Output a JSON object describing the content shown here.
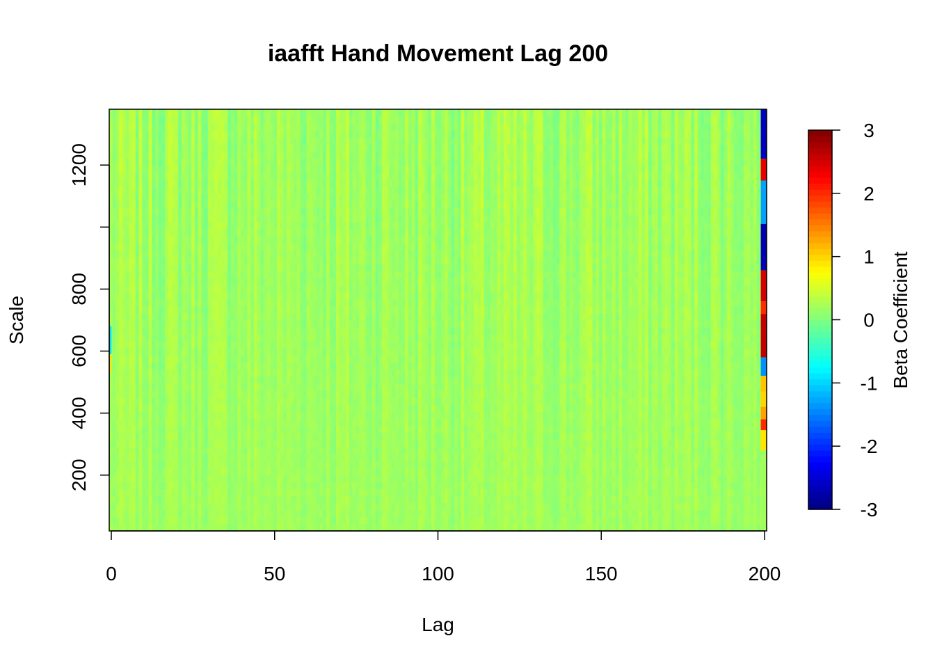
{
  "chart_data": {
    "type": "heatmap",
    "title": "iaafft Hand Movement Lag 200",
    "xlabel": "Lag",
    "ylabel": "Scale",
    "colorbar_label": "Beta Coefficient",
    "xlim": [
      0,
      200
    ],
    "ylim": [
      20,
      1380
    ],
    "x_ticks": [
      0,
      50,
      100,
      150,
      200
    ],
    "x_tick_labels": [
      "0",
      "50",
      "100",
      "150",
      "200"
    ],
    "y_ticks": [
      200,
      400,
      600,
      800,
      1000,
      1200,
      1400
    ],
    "y_tick_labels": [
      "200",
      "400",
      "600",
      "800",
      "",
      "1200",
      ""
    ],
    "colorbar_range": [
      -3,
      3
    ],
    "colorbar_ticks": [
      -3,
      -2,
      -1,
      0,
      1,
      2,
      3
    ],
    "colorbar_tick_labels": [
      "-3",
      "-2",
      "-1",
      "0",
      "1",
      "2",
      "3"
    ],
    "colormap": [
      "#00007F",
      "#0000FF",
      "#007FFF",
      "#00FFFF",
      "#7FFF7F",
      "#FFFF00",
      "#FF7F00",
      "#FF0000",
      "#7F0000"
    ],
    "background_value": 0.2,
    "last_lag_column": {
      "lag": 200,
      "segments": [
        {
          "scale_from": 1220,
          "scale_to": 1380,
          "value": -2.6
        },
        {
          "scale_from": 1150,
          "scale_to": 1220,
          "value": 2.4
        },
        {
          "scale_from": 1010,
          "scale_to": 1150,
          "value": -1.3
        },
        {
          "scale_from": 860,
          "scale_to": 1010,
          "value": -2.7
        },
        {
          "scale_from": 760,
          "scale_to": 860,
          "value": 2.5
        },
        {
          "scale_from": 720,
          "scale_to": 760,
          "value": 2.0
        },
        {
          "scale_from": 580,
          "scale_to": 720,
          "value": 2.6
        },
        {
          "scale_from": 520,
          "scale_to": 580,
          "value": -1.4
        },
        {
          "scale_from": 470,
          "scale_to": 520,
          "value": 1.1
        },
        {
          "scale_from": 420,
          "scale_to": 470,
          "value": 1.0
        },
        {
          "scale_from": 380,
          "scale_to": 420,
          "value": 1.3
        },
        {
          "scale_from": 345,
          "scale_to": 380,
          "value": 2.0
        },
        {
          "scale_from": 280,
          "scale_to": 345,
          "value": 0.9
        },
        {
          "scale_from": 20,
          "scale_to": 280,
          "value": 0.2
        }
      ]
    },
    "first_lag_column": {
      "lag": 0,
      "segments": [
        {
          "scale_from": 590,
          "scale_to": 680,
          "value": -0.9
        },
        {
          "scale_from": 530,
          "scale_to": 590,
          "value": 0.9
        }
      ]
    },
    "grid": false,
    "legend": "right"
  }
}
